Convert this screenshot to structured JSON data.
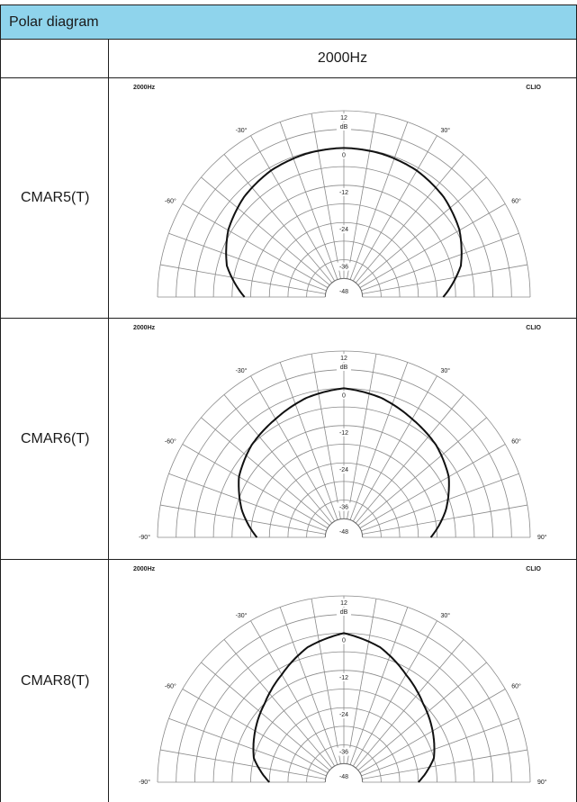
{
  "header": {
    "title": "Polar diagram"
  },
  "subheader": {
    "frequency": "2000Hz"
  },
  "rows": [
    {
      "model": "CMAR5(T)",
      "plot_label": "2000Hz",
      "brand": "CLIO"
    },
    {
      "model": "CMAR6(T)",
      "plot_label": "2000Hz",
      "brand": "CLIO"
    },
    {
      "model": "CMAR8(T)",
      "plot_label": "2000Hz",
      "brand": "CLIO"
    }
  ],
  "polar_scale": {
    "unit": "dB",
    "ring_labels": [
      "12",
      "0",
      "-12",
      "-24",
      "-36",
      "-48"
    ],
    "angle_labels": [
      "-30°",
      "30°",
      "-60°",
      "60°",
      "-90°",
      "90°"
    ]
  },
  "chart_data": [
    {
      "type": "line",
      "title": "2000Hz",
      "series": [
        {
          "name": "",
          "angles_deg": [
            -90,
            -75,
            -60,
            -45,
            -30,
            -15,
            0,
            15,
            30,
            45,
            60,
            75,
            90
          ],
          "values_db": [
            -16,
            -9,
            -5,
            -2.5,
            -1,
            -0.3,
            0,
            -0.3,
            -1,
            -2.5,
            -5,
            -9,
            -16
          ]
        }
      ],
      "r_range_db": [
        -48,
        12
      ]
    },
    {
      "type": "line",
      "title": "2000Hz",
      "series": [
        {
          "name": "",
          "angles_deg": [
            -90,
            -75,
            -60,
            -45,
            -30,
            -15,
            0,
            15,
            30,
            45,
            60,
            75,
            90
          ],
          "values_db": [
            -20,
            -14,
            -9,
            -6,
            -4,
            -1.5,
            0,
            -1.5,
            -4,
            -6,
            -9,
            -14,
            -20
          ]
        }
      ],
      "r_range_db": [
        -48,
        12
      ]
    },
    {
      "type": "line",
      "title": "2000Hz",
      "series": [
        {
          "name": "",
          "angles_deg": [
            -90,
            -75,
            -60,
            -45,
            -30,
            -15,
            0,
            15,
            30,
            45,
            60,
            75,
            90
          ],
          "values_db": [
            -24,
            -18,
            -15,
            -12,
            -8,
            -3,
            0,
            -3,
            -8,
            -12,
            -15,
            -18,
            -24
          ]
        }
      ],
      "r_range_db": [
        -48,
        12
      ]
    }
  ]
}
